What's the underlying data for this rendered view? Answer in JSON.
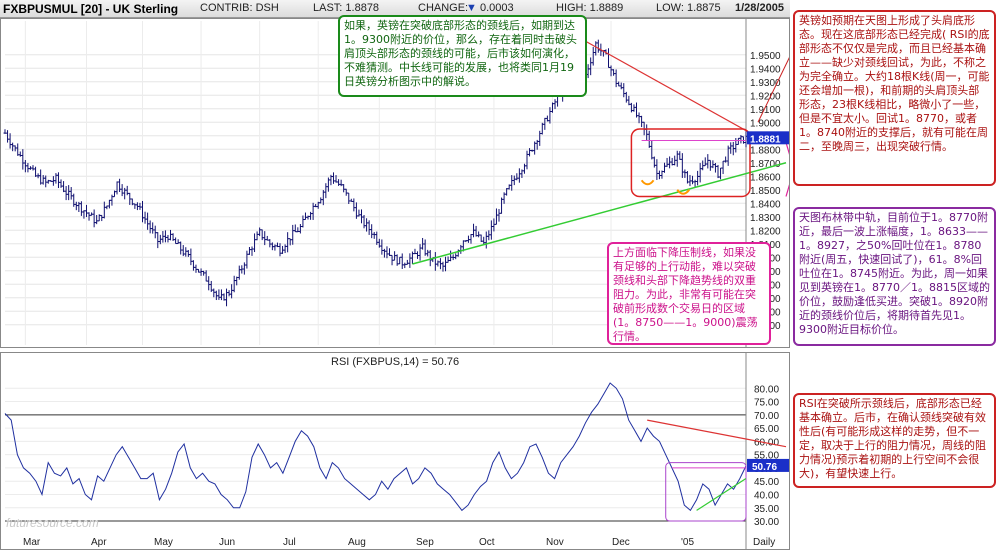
{
  "header": {
    "symbol": "FXBPUSMUL [20] - UK Sterling",
    "contrib": "CONTRIB: DSH",
    "last": "LAST: 1.8878",
    "change_label": "CHANGE:",
    "change_value": "0.0003",
    "high": "HIGH: 1.8889",
    "low": "LOW: 1.8875",
    "date": "1/28/2005"
  },
  "watermark": "futuresource.com",
  "chart_data": [
    {
      "type": "candlestick",
      "ylim": [
        1.735,
        1.975
      ],
      "y_ticks": [
        "1.9500",
        "1.9400",
        "1.9300",
        "1.9200",
        "1.9100",
        "1.9000",
        "1.8900",
        "1.8800",
        "1.8700",
        "1.8600",
        "1.8500",
        "1.8400",
        "1.8300",
        "1.8200",
        "1.8100",
        "1.8000",
        "1.7900",
        "1.7800",
        "1.7700",
        "1.7600",
        "1.7500"
      ],
      "x_ticks": [
        "Mar",
        "Apr",
        "May",
        "Jun",
        "Jul",
        "Aug",
        "Sep",
        "Oct",
        "Nov",
        "Dec",
        "'05",
        "Daily"
      ],
      "last_label": "1.8881",
      "close_path": [
        [
          0,
          1.892
        ],
        [
          4,
          1.88
        ],
        [
          8,
          1.87
        ],
        [
          12,
          1.86
        ],
        [
          16,
          1.855
        ],
        [
          20,
          1.858
        ],
        [
          24,
          1.848
        ],
        [
          28,
          1.84
        ],
        [
          32,
          1.833
        ],
        [
          36,
          1.826
        ],
        [
          40,
          1.838
        ],
        [
          44,
          1.855
        ],
        [
          48,
          1.846
        ],
        [
          52,
          1.838
        ],
        [
          56,
          1.825
        ],
        [
          60,
          1.812
        ],
        [
          64,
          1.816
        ],
        [
          68,
          1.808
        ],
        [
          72,
          1.8
        ],
        [
          76,
          1.79
        ],
        [
          80,
          1.782
        ],
        [
          84,
          1.768
        ],
        [
          88,
          1.774
        ],
        [
          92,
          1.788
        ],
        [
          96,
          1.805
        ],
        [
          100,
          1.818
        ],
        [
          104,
          1.81
        ],
        [
          108,
          1.806
        ],
        [
          112,
          1.815
        ],
        [
          116,
          1.822
        ],
        [
          120,
          1.835
        ],
        [
          124,
          1.845
        ],
        [
          128,
          1.86
        ],
        [
          132,
          1.852
        ],
        [
          136,
          1.84
        ],
        [
          140,
          1.827
        ],
        [
          144,
          1.819
        ],
        [
          148,
          1.808
        ],
        [
          152,
          1.8
        ],
        [
          156,
          1.796
        ],
        [
          160,
          1.8
        ],
        [
          164,
          1.807
        ],
        [
          168,
          1.797
        ],
        [
          172,
          1.793
        ],
        [
          176,
          1.8
        ],
        [
          180,
          1.813
        ],
        [
          184,
          1.818
        ],
        [
          188,
          1.81
        ],
        [
          192,
          1.825
        ],
        [
          196,
          1.845
        ],
        [
          200,
          1.858
        ],
        [
          204,
          1.87
        ],
        [
          208,
          1.885
        ],
        [
          212,
          1.9
        ],
        [
          216,
          1.915
        ],
        [
          220,
          1.93
        ],
        [
          224,
          1.942
        ],
        [
          228,
          1.935
        ],
        [
          232,
          1.958
        ],
        [
          236,
          1.948
        ],
        [
          240,
          1.93
        ],
        [
          244,
          1.918
        ],
        [
          248,
          1.905
        ],
        [
          252,
          1.89
        ],
        [
          254,
          1.876
        ],
        [
          256,
          1.862
        ],
        [
          260,
          1.868
        ],
        [
          264,
          1.875
        ],
        [
          268,
          1.856
        ],
        [
          272,
          1.86
        ],
        [
          276,
          1.872
        ],
        [
          280,
          1.862
        ],
        [
          284,
          1.878
        ],
        [
          288,
          1.886
        ],
        [
          291,
          1.888
        ]
      ]
    },
    {
      "type": "line",
      "title": "RSI (FXBPUS,14) = 50.76",
      "ylim": [
        27,
        85
      ],
      "y_ticks": [
        30,
        35,
        40,
        45,
        50,
        55,
        60,
        65,
        70,
        75,
        80
      ],
      "last_label": "50.76",
      "values": [
        70.5,
        68,
        55,
        50,
        48,
        45,
        40,
        52,
        48,
        47,
        50,
        44,
        46,
        40,
        38,
        47,
        45,
        50,
        55,
        58,
        54,
        50,
        46,
        46,
        48,
        38,
        42,
        48,
        56,
        59,
        50,
        46,
        48,
        45,
        44,
        40,
        38,
        35,
        35,
        41,
        54,
        59,
        55,
        50,
        52,
        48,
        54,
        60,
        64,
        62,
        58,
        50,
        46,
        52,
        50,
        46,
        44,
        42,
        40,
        38,
        40,
        45,
        42,
        46,
        48,
        50,
        44,
        46,
        50,
        48,
        44,
        42,
        40,
        37,
        34,
        36,
        40,
        43,
        45,
        52,
        56,
        50,
        46,
        48,
        52,
        58,
        59,
        54,
        48,
        46,
        52,
        55,
        58,
        62,
        67,
        71,
        74,
        78,
        82,
        80,
        76,
        68,
        64,
        60,
        65,
        62,
        60,
        55,
        50,
        45,
        36,
        34,
        38,
        44,
        42,
        36,
        40,
        44,
        42,
        46,
        50.76
      ]
    }
  ],
  "notes": {
    "green": "如果，英镑在突破底部形态的颈线后，如期到达1。9300附近的价位，那么，存在着同时击破头肩顶头部形态的颈线的可能，后市该如何演化，不难猜测。中长线可能的发展，也将类同1月19日英镑分析图示中的解说。",
    "red1": "英镑如预期在天图上形成了头肩底形态。现在这底部形态已经完成( RSI的底部形态不仅仅是完成，而且已经基本确立——缺少对颈线回试，为此，不称之为完全确立。大约18根K线(周一，可能还会增加一根)，和前期的头肩顶头部形态，23根K线相比，略微小了一些，但是不宜太小。回试1。8770，或者1。8740附近的支撑后，就有可能在周二，至晚周三，出现突破行情。",
    "pink": "上方面临下降压制线，如果没有足够的上行动能，难以突破颈线和头部下降趋势线的双重阻力。为此，非常有可能在突破前形成数个交易日的区域(1。8750——1。9000)震荡行情。",
    "purple": "天图布林带中轨，目前位于1。8770附近，最后一波上涨幅度，1。8633——1。8927，之50%回吐位在1。8780附近(周五，快速回试了)，61。8%回吐位在1。8745附近。为此，周一如果见到英镑在1。8770／1。8815区域的价位，鼓励逢低买进。突破1。8920附近的颈线价位后，将期待首先见1。9300附近目标价位。",
    "red2": "RSI在突破所示颈线后，底部形态已经基本确立。后市，在确认颈线突破有效性后(有可能形成这样的走势，但不一定，取决于上行的阻力情况，周线的阻力情况)预示着初期的上行空间不会很大)，有望快速上行。"
  }
}
